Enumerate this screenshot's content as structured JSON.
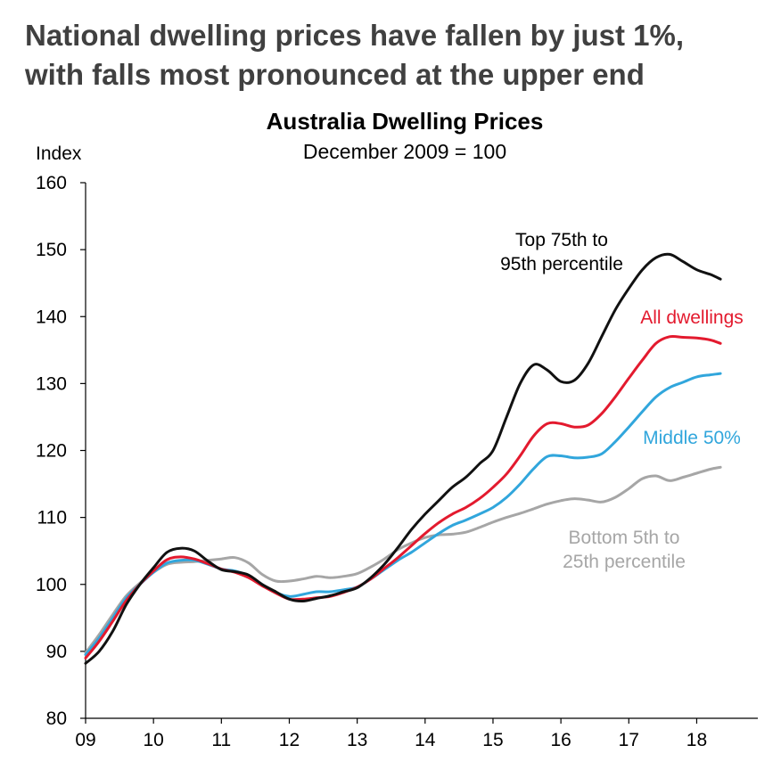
{
  "headline": {
    "line1": "National dwelling prices have fallen by just 1%,",
    "line2": "with falls most pronounced at the upper end"
  },
  "chart_data": {
    "type": "line",
    "title": "Australia Dwelling Prices",
    "subtitle": "December 2009 = 100",
    "ylabel": "Index",
    "xlabel": "",
    "ylim": [
      80,
      160
    ],
    "yticks": [
      80,
      90,
      100,
      110,
      120,
      130,
      140,
      150,
      160
    ],
    "xlim": [
      2009,
      2018.9
    ],
    "xticks": [
      {
        "value": 2009,
        "label": "09"
      },
      {
        "value": 2010,
        "label": "10"
      },
      {
        "value": 2011,
        "label": "11"
      },
      {
        "value": 2012,
        "label": "12"
      },
      {
        "value": 2013,
        "label": "13"
      },
      {
        "value": 2014,
        "label": "14"
      },
      {
        "value": 2015,
        "label": "15"
      },
      {
        "value": 2016,
        "label": "16"
      },
      {
        "value": 2017,
        "label": "17"
      },
      {
        "value": 2018,
        "label": "18"
      }
    ],
    "grid": false,
    "legend": "direct line labels",
    "series": [
      {
        "name": "Bottom 5th to 25th percentile",
        "label_lines": [
          "Bottom 5th to",
          "25th percentile"
        ],
        "color": "#a6a6a6",
        "x": [
          2009.0,
          2009.2,
          2009.4,
          2009.6,
          2009.8,
          2010.0,
          2010.2,
          2010.4,
          2010.6,
          2010.8,
          2011.0,
          2011.2,
          2011.4,
          2011.6,
          2011.8,
          2012.0,
          2012.2,
          2012.4,
          2012.6,
          2012.8,
          2013.0,
          2013.2,
          2013.4,
          2013.6,
          2013.8,
          2014.0,
          2014.2,
          2014.4,
          2014.6,
          2014.8,
          2015.0,
          2015.2,
          2015.4,
          2015.6,
          2015.8,
          2016.0,
          2016.2,
          2016.4,
          2016.6,
          2016.8,
          2017.0,
          2017.2,
          2017.4,
          2017.6,
          2017.8,
          2018.0,
          2018.2,
          2018.35
        ],
        "values": [
          89.8,
          92.5,
          95.5,
          98.3,
          100.2,
          101.8,
          103.0,
          103.3,
          103.4,
          103.6,
          103.8,
          104.0,
          103.2,
          101.5,
          100.5,
          100.5,
          100.8,
          101.2,
          101.0,
          101.2,
          101.6,
          102.6,
          103.8,
          105.2,
          106.2,
          107.0,
          107.4,
          107.5,
          107.8,
          108.5,
          109.3,
          110.0,
          110.6,
          111.3,
          112.0,
          112.5,
          112.8,
          112.6,
          112.3,
          113.0,
          114.3,
          115.8,
          116.2,
          115.5,
          116.0,
          116.6,
          117.2,
          117.5
        ]
      },
      {
        "name": "Middle 50%",
        "label_lines": [
          "Middle 50%"
        ],
        "color": "#31a6dc",
        "x": [
          2009.0,
          2009.2,
          2009.4,
          2009.6,
          2009.8,
          2010.0,
          2010.2,
          2010.4,
          2010.6,
          2010.8,
          2011.0,
          2011.2,
          2011.4,
          2011.6,
          2011.8,
          2012.0,
          2012.2,
          2012.4,
          2012.6,
          2012.8,
          2013.0,
          2013.2,
          2013.4,
          2013.6,
          2013.8,
          2014.0,
          2014.2,
          2014.4,
          2014.6,
          2014.8,
          2015.0,
          2015.2,
          2015.4,
          2015.6,
          2015.8,
          2016.0,
          2016.2,
          2016.4,
          2016.6,
          2016.8,
          2017.0,
          2017.2,
          2017.4,
          2017.6,
          2017.8,
          2018.0,
          2018.2,
          2018.35
        ],
        "values": [
          89.5,
          92.0,
          95.0,
          98.0,
          100.0,
          101.8,
          103.2,
          103.6,
          103.6,
          103.0,
          102.3,
          102.0,
          101.3,
          100.0,
          98.8,
          98.2,
          98.5,
          98.9,
          98.9,
          99.2,
          99.6,
          100.8,
          102.2,
          103.6,
          104.8,
          106.2,
          107.6,
          108.8,
          109.6,
          110.5,
          111.5,
          113.0,
          115.0,
          117.3,
          119.1,
          119.2,
          118.9,
          119.0,
          119.5,
          121.3,
          123.5,
          125.8,
          128.0,
          129.4,
          130.2,
          131.0,
          131.3,
          131.5
        ]
      },
      {
        "name": "All dwellings",
        "label_lines": [
          "All dwellings"
        ],
        "color": "#e31a2e",
        "x": [
          2009.0,
          2009.2,
          2009.4,
          2009.6,
          2009.8,
          2010.0,
          2010.2,
          2010.4,
          2010.6,
          2010.8,
          2011.0,
          2011.2,
          2011.4,
          2011.6,
          2011.8,
          2012.0,
          2012.2,
          2012.4,
          2012.6,
          2012.8,
          2013.0,
          2013.2,
          2013.4,
          2013.6,
          2013.8,
          2014.0,
          2014.2,
          2014.4,
          2014.6,
          2014.8,
          2015.0,
          2015.2,
          2015.4,
          2015.6,
          2015.8,
          2016.0,
          2016.2,
          2016.4,
          2016.6,
          2016.8,
          2017.0,
          2017.2,
          2017.4,
          2017.6,
          2017.8,
          2018.0,
          2018.2,
          2018.35
        ],
        "values": [
          89.0,
          91.5,
          94.5,
          97.6,
          100.0,
          102.0,
          103.7,
          104.1,
          103.8,
          103.1,
          102.3,
          101.8,
          101.0,
          99.8,
          98.7,
          97.8,
          97.8,
          98.0,
          98.2,
          98.8,
          99.6,
          100.8,
          102.4,
          104.0,
          105.8,
          107.6,
          109.2,
          110.5,
          111.5,
          112.8,
          114.5,
          116.5,
          119.2,
          122.2,
          124.0,
          124.0,
          123.5,
          123.8,
          125.5,
          128.0,
          130.8,
          133.5,
          136.0,
          137.0,
          136.9,
          136.8,
          136.5,
          136.0
        ]
      },
      {
        "name": "Top 75th to 95th percentile",
        "label_lines": [
          "Top 75th to",
          "95th percentile"
        ],
        "color": "#111111",
        "x": [
          2009.0,
          2009.2,
          2009.4,
          2009.6,
          2009.8,
          2010.0,
          2010.2,
          2010.4,
          2010.6,
          2010.8,
          2011.0,
          2011.2,
          2011.4,
          2011.6,
          2011.8,
          2012.0,
          2012.2,
          2012.4,
          2012.6,
          2012.8,
          2013.0,
          2013.2,
          2013.4,
          2013.6,
          2013.8,
          2014.0,
          2014.2,
          2014.4,
          2014.6,
          2014.8,
          2015.0,
          2015.2,
          2015.4,
          2015.6,
          2015.8,
          2016.0,
          2016.2,
          2016.4,
          2016.6,
          2016.8,
          2017.0,
          2017.2,
          2017.4,
          2017.6,
          2017.8,
          2018.0,
          2018.2,
          2018.35
        ],
        "values": [
          88.2,
          90.0,
          93.0,
          97.0,
          100.0,
          102.5,
          104.8,
          105.4,
          105.0,
          103.5,
          102.2,
          101.9,
          101.4,
          100.0,
          98.9,
          97.8,
          97.5,
          97.9,
          98.3,
          98.9,
          99.5,
          101.0,
          103.0,
          105.5,
          108.2,
          110.5,
          112.5,
          114.5,
          116.0,
          118.0,
          120.0,
          125.0,
          130.0,
          132.8,
          132.0,
          130.3,
          130.5,
          133.0,
          137.0,
          141.0,
          144.2,
          147.0,
          148.8,
          149.3,
          148.2,
          147.0,
          146.3,
          145.6
        ]
      }
    ]
  }
}
